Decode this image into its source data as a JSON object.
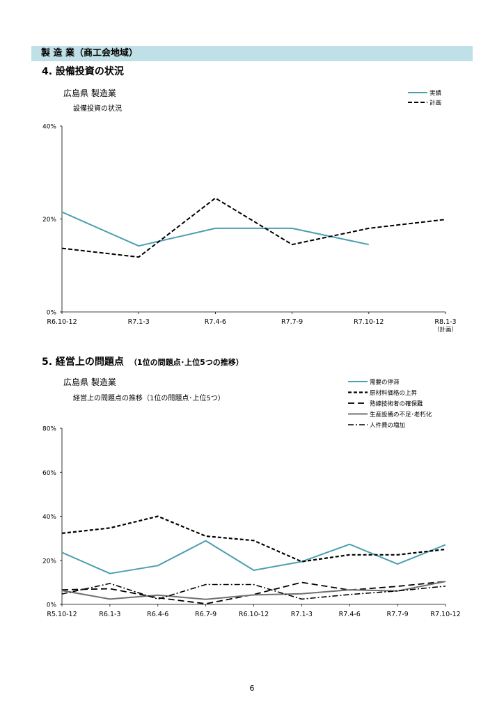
{
  "header": {
    "section_label": "製 造 業（商工会地域）",
    "page_number": "6"
  },
  "section4": {
    "heading": "4. 設備投資の状況"
  },
  "section5": {
    "heading": "5. 経営上の問題点",
    "heading_sub": "（1位の問題点･上位5つの推移）"
  },
  "colors": {
    "teal": "#4a9fb0",
    "black": "#000000",
    "gray": "#707070"
  },
  "chart_data": [
    {
      "type": "line",
      "title": "広島県 製造業",
      "subtitle": "設備投資の状況",
      "ylim": [
        0,
        40
      ],
      "yticks": [
        "0%",
        "20%",
        "40%"
      ],
      "ytick_values": [
        0,
        20,
        40
      ],
      "categories": [
        "R6.10-12",
        "R7.1-3",
        "R7.4-6",
        "R7.7-9",
        "R7.10-12",
        "R8.1-3"
      ],
      "category_note": "（計画）",
      "series": [
        {
          "name": "実績",
          "style": "solid-teal",
          "values": [
            21.5,
            14.2,
            18.0,
            18.0,
            14.5,
            null
          ]
        },
        {
          "name": "計画",
          "style": "dash",
          "values": [
            13.7,
            11.8,
            24.5,
            14.5,
            18.0,
            19.9
          ]
        }
      ]
    },
    {
      "type": "line",
      "title": "広島県 製造業",
      "subtitle": "経営上の問題点の推移（1位の問題点･上位5つ）",
      "ylim": [
        0,
        80
      ],
      "yticks": [
        "0%",
        "20%",
        "40%",
        "60%",
        "80%"
      ],
      "ytick_values": [
        0,
        20,
        40,
        60,
        80
      ],
      "categories": [
        "R5.10-12",
        "R6.1-3",
        "R6.4-6",
        "R6.7-9",
        "R6.10-12",
        "R7.1-3",
        "R7.4-6",
        "R7.7-9",
        "R7.10-12"
      ],
      "series": [
        {
          "name": "需要の停滞",
          "style": "solid-teal",
          "values": [
            23.6,
            14.0,
            17.6,
            28.9,
            15.5,
            19.4,
            27.3,
            18.3,
            27.1
          ]
        },
        {
          "name": "原材料価格の上昇",
          "style": "dash-bold",
          "values": [
            32.3,
            34.7,
            40.0,
            31.0,
            29.0,
            19.4,
            22.5,
            22.5,
            25.0
          ]
        },
        {
          "name": "熟練技術者の確保難",
          "style": "dash-long",
          "values": [
            6.6,
            7.1,
            3.0,
            0.3,
            4.5,
            10.0,
            6.5,
            8.2,
            10.4
          ]
        },
        {
          "name": "生産設備の不足･老朽化",
          "style": "solid-gray",
          "values": [
            6.3,
            2.4,
            4.2,
            2.3,
            4.3,
            4.8,
            6.6,
            6.1,
            10.4
          ]
        },
        {
          "name": "人件費の増加",
          "style": "dashdot",
          "values": [
            4.7,
            9.5,
            2.4,
            9.0,
            9.0,
            2.4,
            4.5,
            6.1,
            8.3
          ]
        }
      ]
    }
  ]
}
